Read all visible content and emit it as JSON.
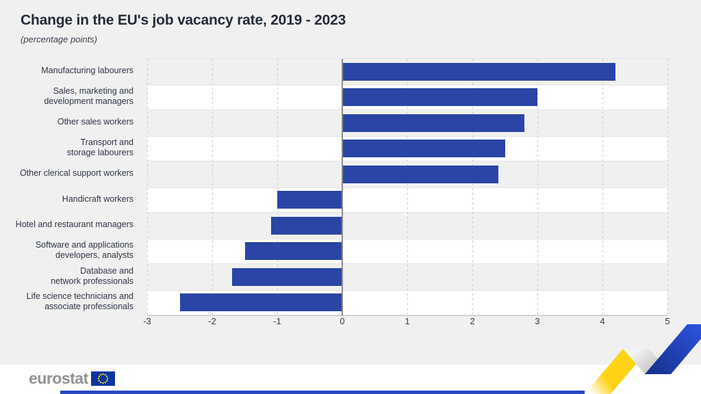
{
  "header": {
    "title": "Change in the EU's job vacancy rate, 2019 - 2023",
    "subtitle": "(percentage points)"
  },
  "chart_data": {
    "type": "bar",
    "orientation": "horizontal",
    "title": "Change in the EU's job vacancy rate, 2019 - 2023",
    "subtitle": "(percentage points)",
    "unit": "percentage points",
    "categories": [
      "Manufacturing labourers",
      "Sales, marketing and\ndevelopment managers",
      "Other sales workers",
      "Transport and\nstorage labourers",
      "Other clerical support workers",
      "Handicraft workers",
      "Hotel and restaurant managers",
      "Software and applications\ndevelopers, analysts",
      "Database and\nnetwork professionals",
      "Life science technicians and\nassociate professionals"
    ],
    "values": [
      4.2,
      3.0,
      2.8,
      2.5,
      2.4,
      -1.0,
      -1.1,
      -1.5,
      -1.7,
      -2.5
    ],
    "xlim": [
      -3,
      5
    ],
    "x_ticks": [
      -3,
      -2,
      -1,
      0,
      1,
      2,
      3,
      4,
      5
    ],
    "bar_color": "#2a45a5",
    "grid": "vertical dashed, solid zero line",
    "legend": "none",
    "row_stripes": "alternating grey/white"
  },
  "footer": {
    "logo_text": "eurostat",
    "flag_color": "#0a35a3",
    "star_color": "#ffd617",
    "ribbon_yellow": "#ffd314",
    "ribbon_blue": "#2e56e3",
    "accent_strip_color": "#2c49c5"
  }
}
